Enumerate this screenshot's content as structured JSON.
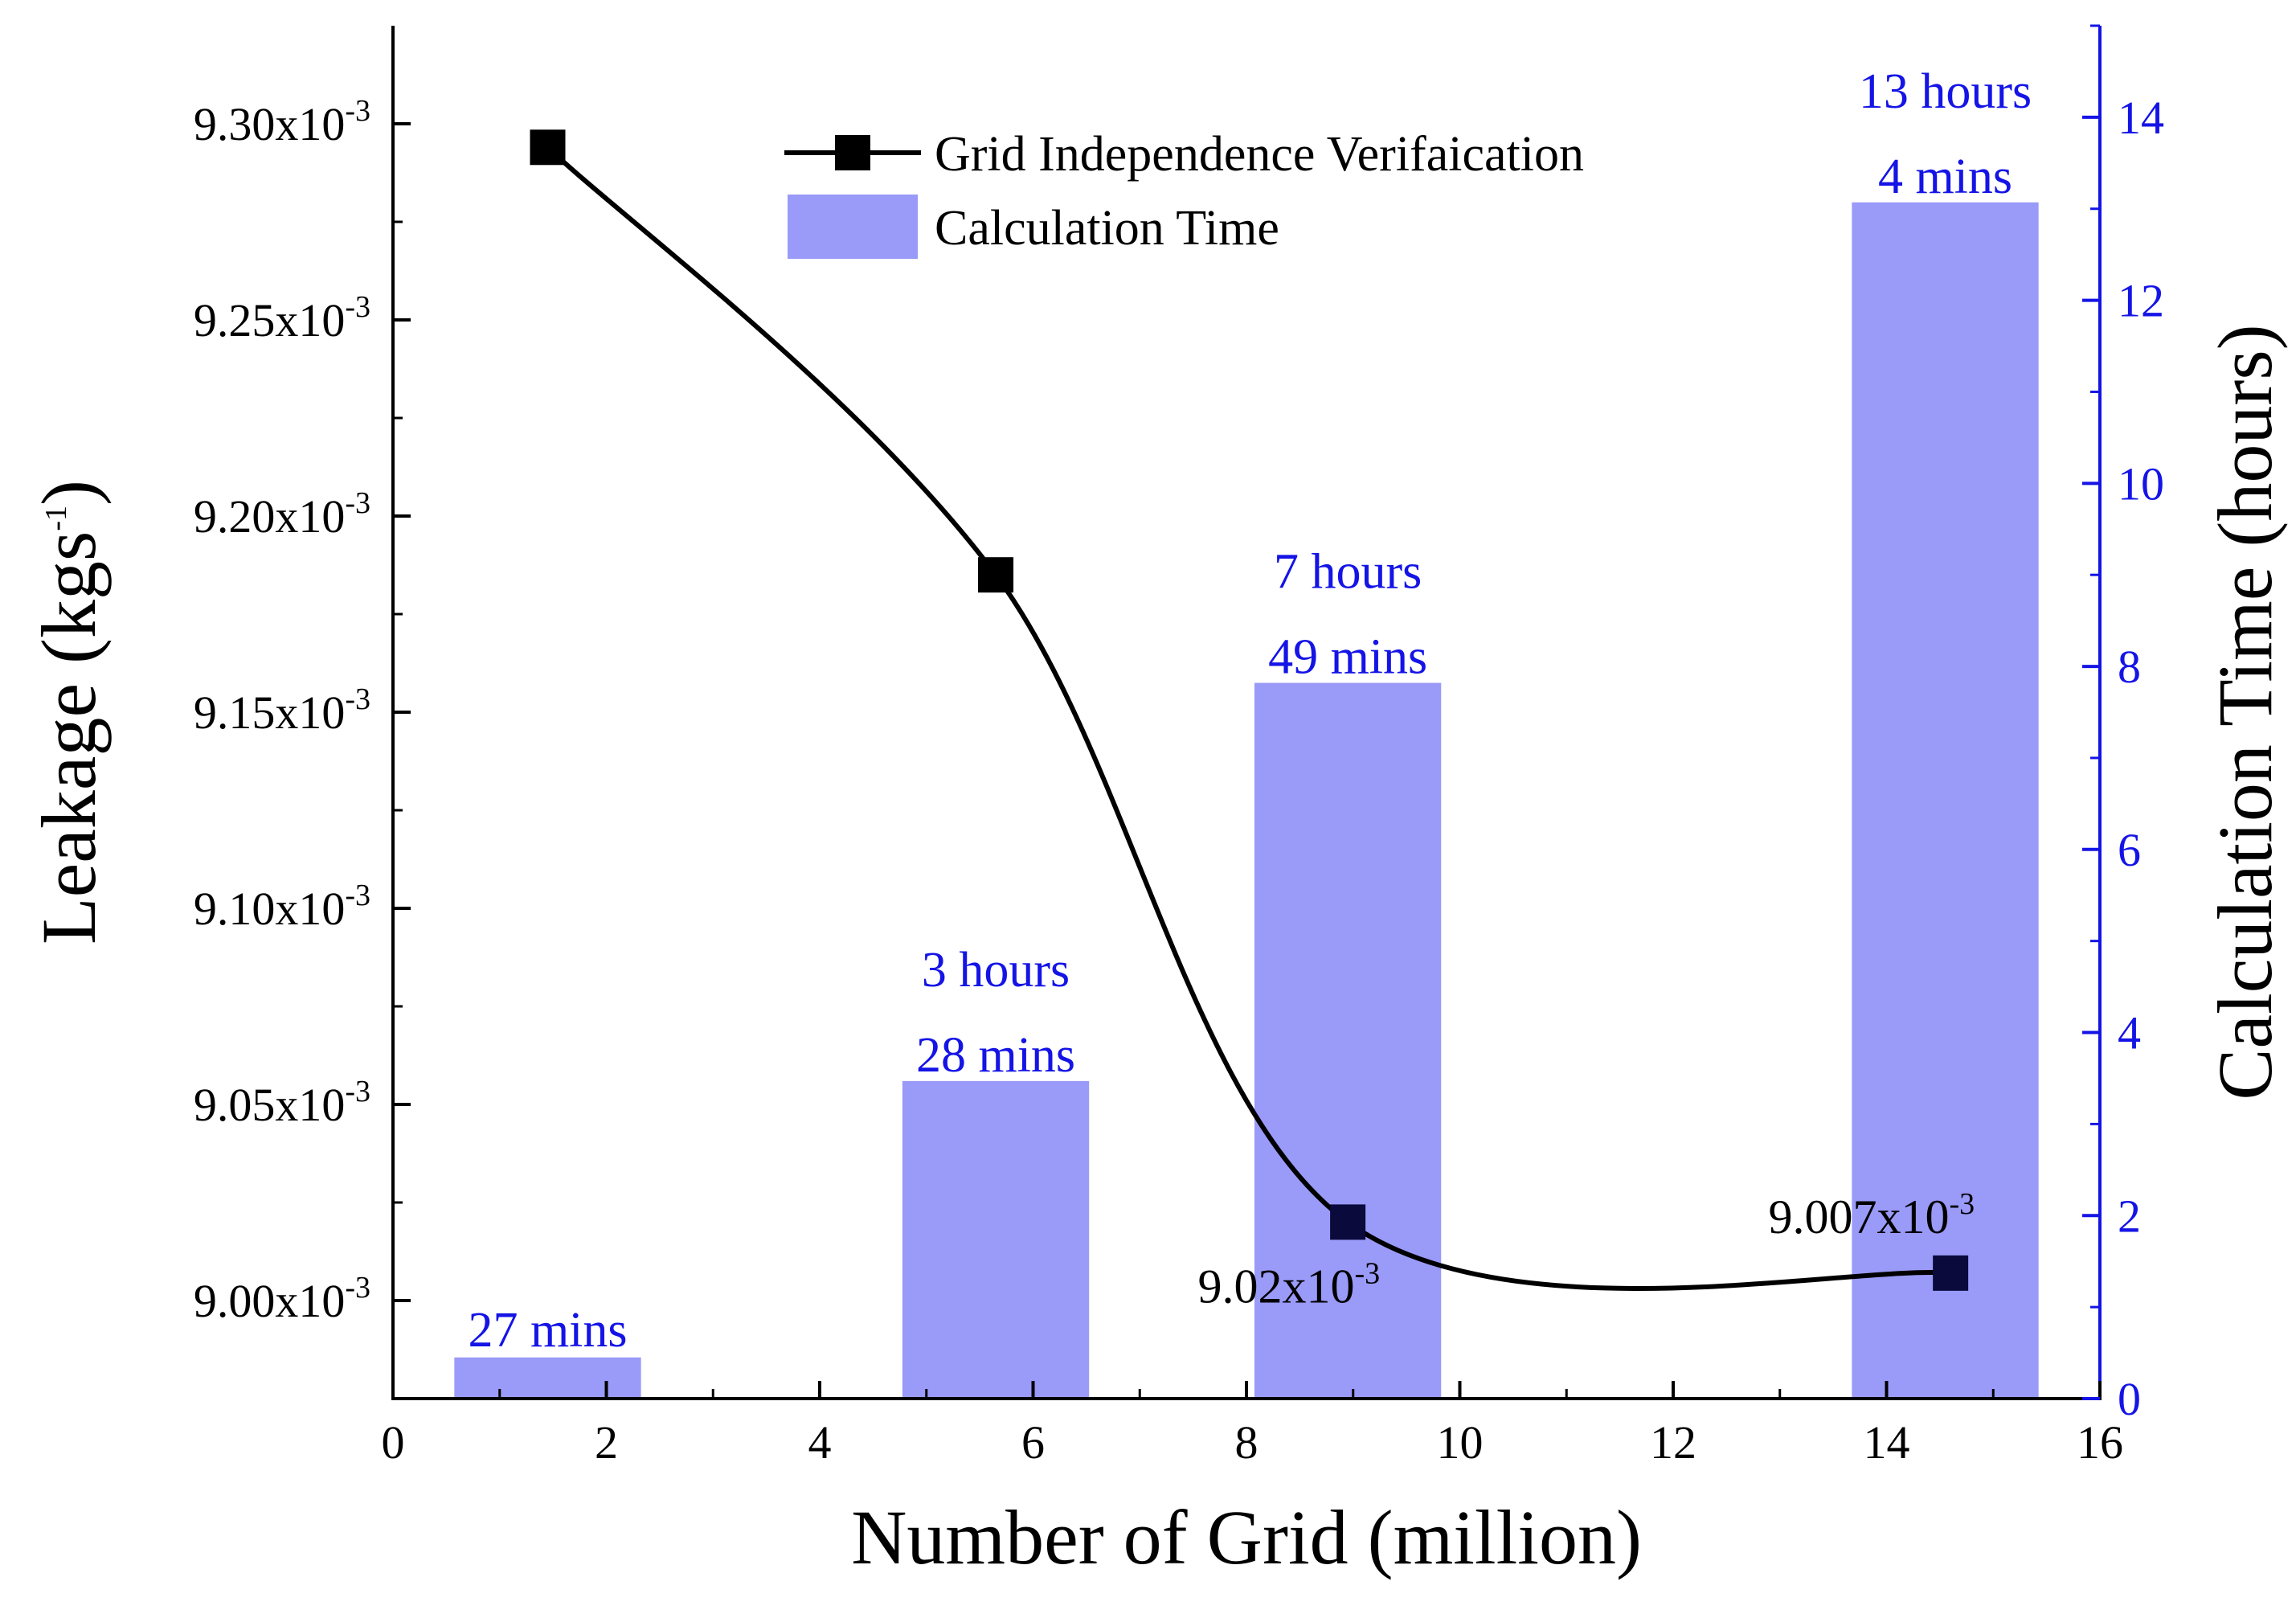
{
  "chart_data": {
    "type": "bar+line",
    "xlabel": "Number of Grid (million)",
    "ylabel_left": "Leakage (kgs",
    "ylabel_left_sup": "-1",
    "ylabel_left_end": ")",
    "ylabel_right": "Calculation Time (hours)",
    "xlim": [
      0,
      16
    ],
    "x_ticks": [
      "0",
      "2",
      "4",
      "6",
      "8",
      "10",
      "12",
      "14",
      "16"
    ],
    "ylim_left": [
      0.008975,
      0.009325
    ],
    "y_left_ticks": [
      {
        "value": 0.009,
        "label": "9.00x10",
        "exp": "-3"
      },
      {
        "value": 0.00905,
        "label": "9.05x10",
        "exp": "-3"
      },
      {
        "value": 0.0091,
        "label": "9.10x10",
        "exp": "-3"
      },
      {
        "value": 0.00915,
        "label": "9.15x10",
        "exp": "-3"
      },
      {
        "value": 0.0092,
        "label": "9.20x10",
        "exp": "-3"
      },
      {
        "value": 0.00925,
        "label": "9.25x10",
        "exp": "-3"
      },
      {
        "value": 0.0093,
        "label": "9.30x10",
        "exp": "-3"
      }
    ],
    "ylim_right": [
      0,
      15
    ],
    "y_right_ticks": [
      "0",
      "2",
      "4",
      "6",
      "8",
      "10",
      "12",
      "14"
    ],
    "line_series": {
      "name": "Grid Independence Verifaication",
      "color": "#000000",
      "x": [
        1.45,
        5.65,
        8.95,
        14.6
      ],
      "y": [
        0.009294,
        0.009185,
        0.00902,
        0.009007
      ]
    },
    "bar_series": {
      "name": "Calculation Time",
      "color": "#9a9af9",
      "x": [
        1.45,
        5.65,
        8.95,
        14.55
      ],
      "width": 1.75,
      "values": [
        0.45,
        3.47,
        7.82,
        13.07
      ],
      "labels": [
        {
          "line1": "27 mins"
        },
        {
          "line1": "3  hours",
          "line2": "28 mins"
        },
        {
          "line1": "7  hours",
          "line2": "49 mins"
        },
        {
          "line1": "13  hours",
          "line2": "4    mins"
        }
      ]
    },
    "point_annotations": [
      {
        "text": "9.02x10",
        "exp": "-3"
      },
      {
        "text": "9.007x10",
        "exp": "-3"
      }
    ],
    "right_axis_color": "#1414e6",
    "label_color": "#1414e6"
  }
}
